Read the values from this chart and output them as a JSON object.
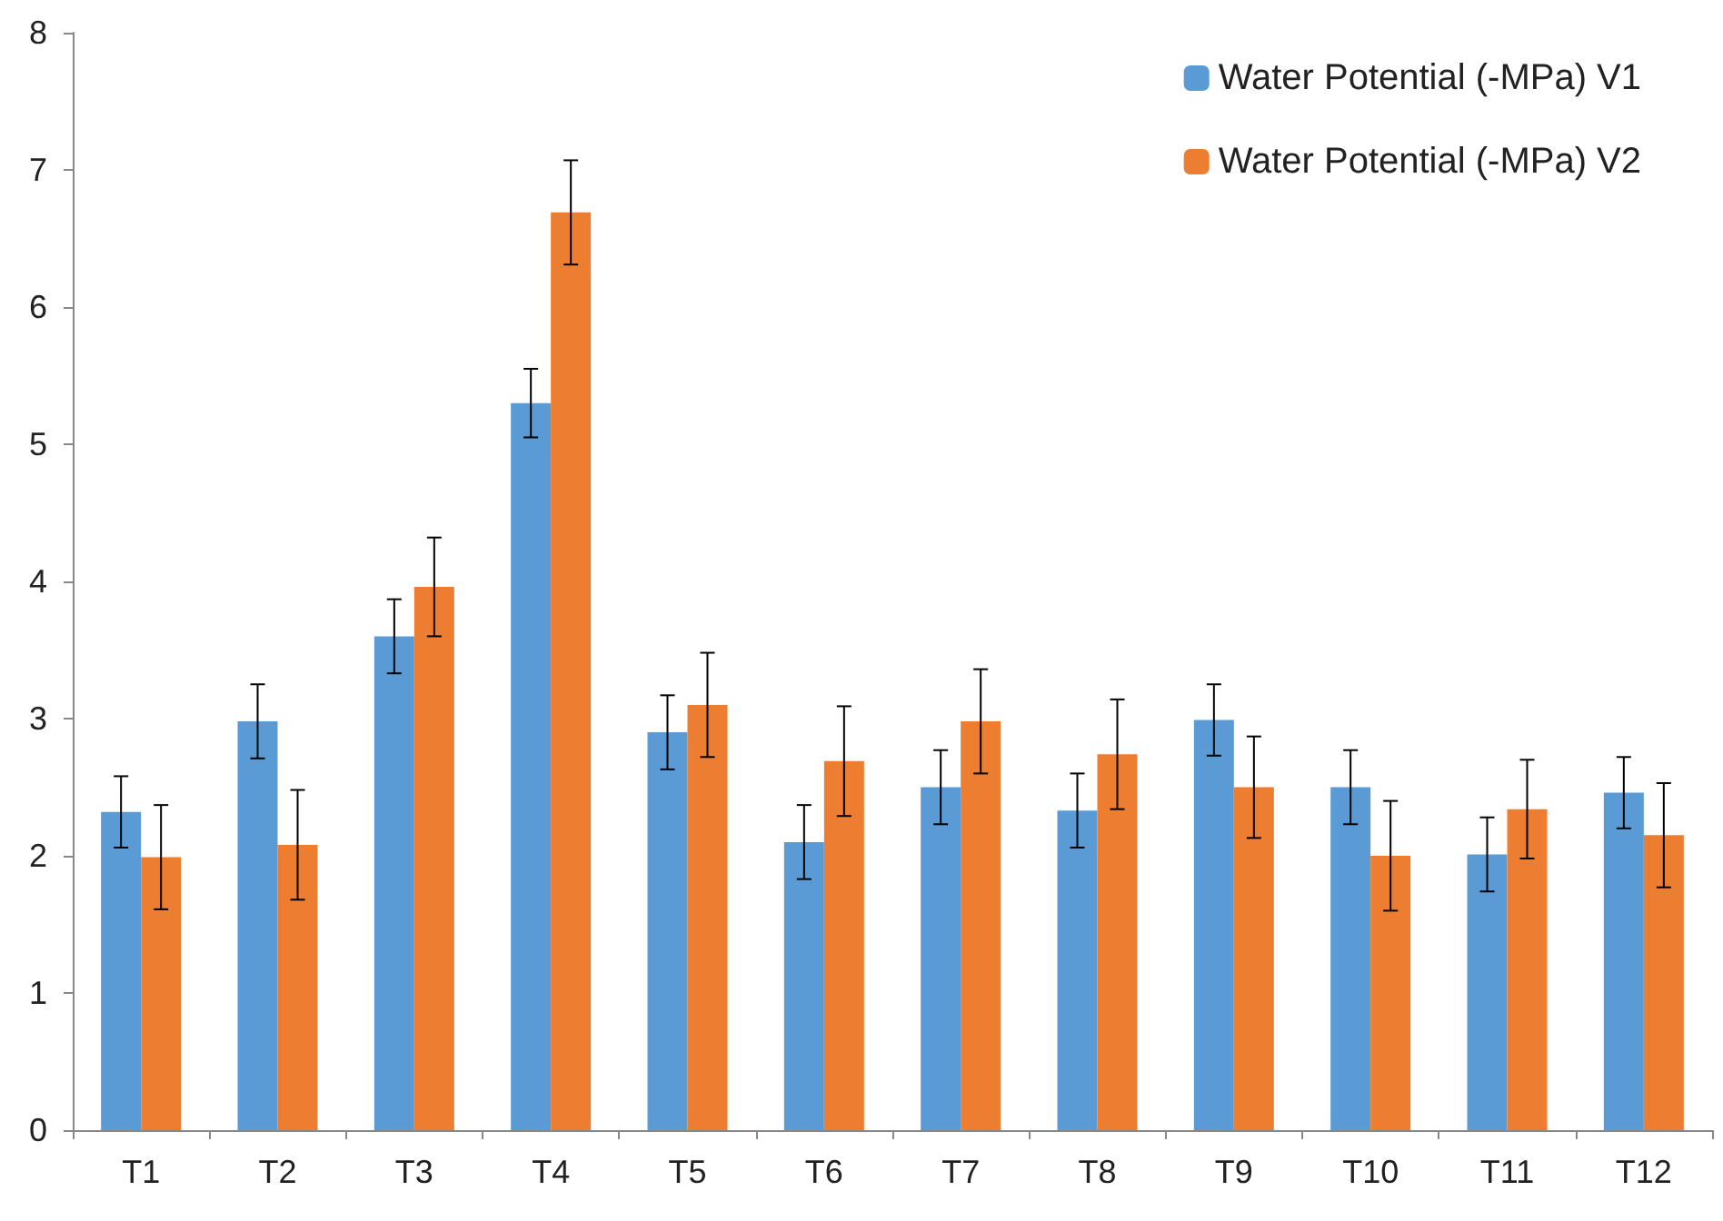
{
  "chart_data": {
    "type": "bar",
    "categories": [
      "T1",
      "T2",
      "T3",
      "T4",
      "T5",
      "T6",
      "T7",
      "T8",
      "T9",
      "T10",
      "T11",
      "T12"
    ],
    "series": [
      {
        "name": "Water Potential (-MPa) V1",
        "color": "#5b9bd5",
        "values": [
          2.32,
          2.98,
          3.6,
          5.3,
          2.9,
          2.1,
          2.5,
          2.33,
          2.99,
          2.5,
          2.01,
          2.46
        ],
        "errors": [
          0.26,
          0.27,
          0.27,
          0.25,
          0.27,
          0.27,
          0.27,
          0.27,
          0.26,
          0.27,
          0.27,
          0.26
        ]
      },
      {
        "name": "Water Potential (-MPa) V2",
        "color": "#ed7d31",
        "values": [
          1.99,
          2.08,
          3.96,
          6.69,
          3.1,
          2.69,
          2.98,
          2.74,
          2.5,
          2.0,
          2.34,
          2.15
        ],
        "errors": [
          0.38,
          0.4,
          0.36,
          0.38,
          0.38,
          0.4,
          0.38,
          0.4,
          0.37,
          0.4,
          0.36,
          0.38
        ]
      }
    ],
    "ylim": [
      0,
      8
    ],
    "yticks": [
      0,
      1,
      2,
      3,
      4,
      5,
      6,
      7,
      8
    ],
    "grid": false,
    "legend": "top right"
  }
}
